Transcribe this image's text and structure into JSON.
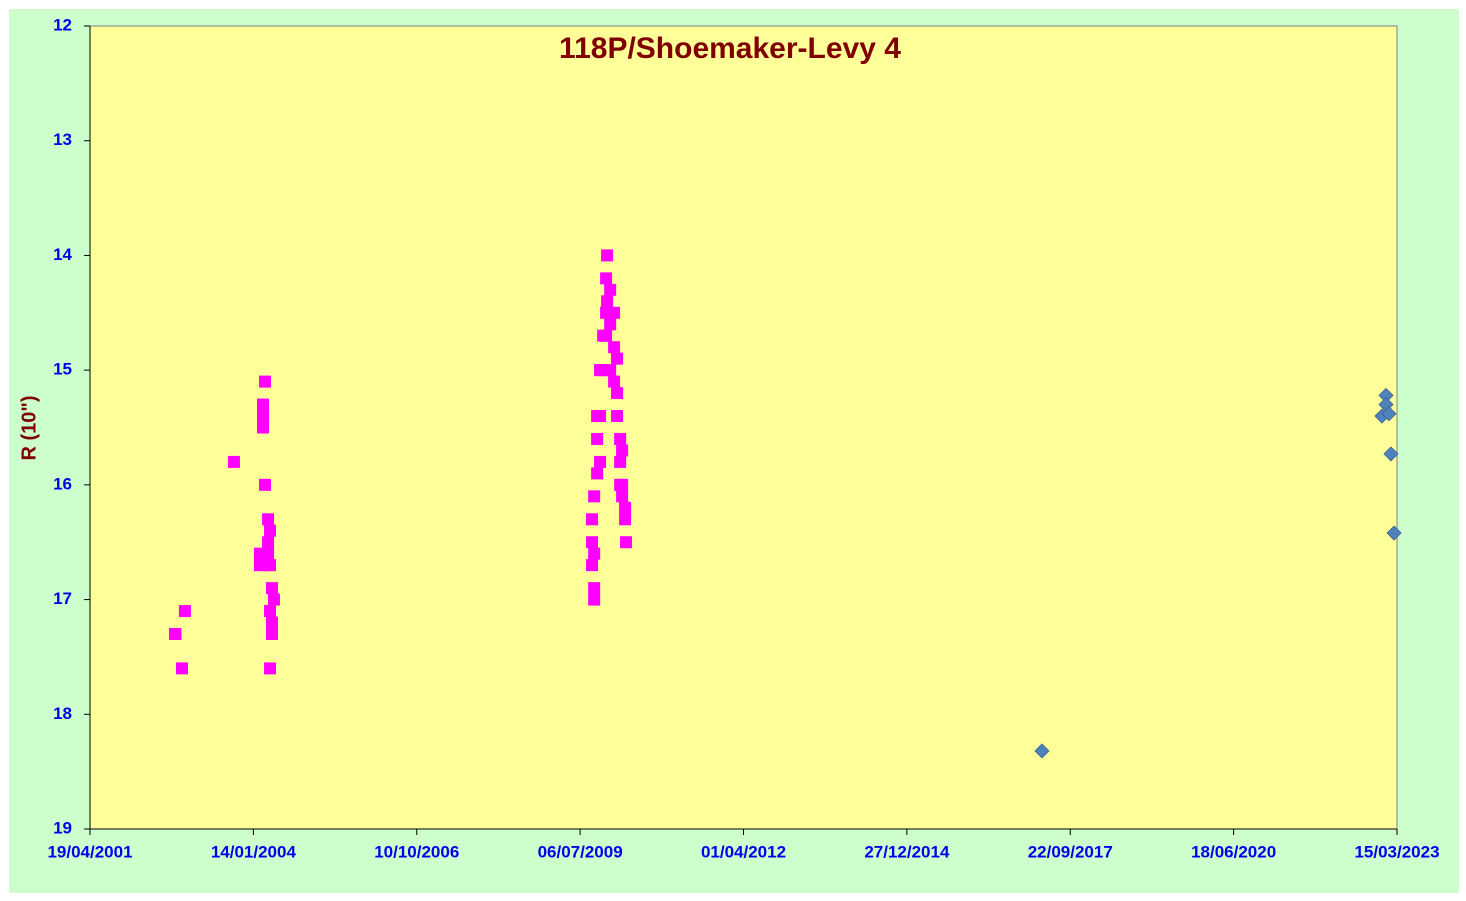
{
  "chart_data": {
    "type": "scatter",
    "title": "118P/Shoemaker-Levy 4",
    "y_label": "R (10\")",
    "xlim": [
      "19/04/2001",
      "15/03/2023"
    ],
    "xticks": [
      "19/04/2001",
      "14/01/2004",
      "10/10/2006",
      "06/07/2009",
      "01/04/2012",
      "27/12/2014",
      "22/09/2017",
      "18/06/2020",
      "15/03/2023"
    ],
    "ylim": [
      12,
      19
    ],
    "y_reversed": true,
    "yticks": [
      12,
      13,
      14,
      15,
      16,
      17,
      18,
      19
    ],
    "series": [
      {
        "color": "#ff00ff",
        "marker": "square",
        "x": [
          "21/09/2002",
          "24/09/2002",
          "03/11/2002",
          "21/11/2002",
          "17/09/2003",
          "23/02/2004",
          "23/02/2004",
          "13/03/2004",
          "13/03/2004",
          "13/03/2004",
          "25/03/2004",
          "25/03/2004",
          "25/03/2004",
          "13/04/2004",
          "13/04/2004",
          "13/04/2004",
          "25/04/2004",
          "25/04/2004",
          "25/04/2004",
          "25/04/2004",
          "07/05/2004",
          "07/05/2004",
          "07/05/2004",
          "19/05/2004",
          "17/09/2009",
          "17/09/2009",
          "17/09/2009",
          "30/09/2009",
          "30/09/2009",
          "30/09/2009",
          "30/09/2009",
          "18/10/2009",
          "18/10/2009",
          "18/10/2009",
          "05/11/2009",
          "05/11/2009",
          "05/11/2009",
          "24/11/2009",
          "24/11/2009",
          "12/12/2009",
          "12/12/2009",
          "12/12/2009",
          "18/12/2009",
          "18/12/2009",
          "06/01/2010",
          "06/01/2010",
          "06/01/2010",
          "30/01/2010",
          "30/01/2010",
          "30/01/2010",
          "17/02/2010",
          "17/02/2010",
          "17/02/2010",
          "08/03/2010",
          "08/03/2010",
          "08/03/2010",
          "20/03/2010",
          "20/03/2010",
          "20/03/2010",
          "07/04/2010",
          "07/04/2010",
          "13/04/2010"
        ],
        "values": [
          17.3,
          17.3,
          17.6,
          17.1,
          15.8,
          16.6,
          16.7,
          15.5,
          15.3,
          15.4,
          15.1,
          16.0,
          16.7,
          16.3,
          16.5,
          16.6,
          16.4,
          16.7,
          17.1,
          17.6,
          16.9,
          17.2,
          17.3,
          17.0,
          16.3,
          16.5,
          16.7,
          16.1,
          16.6,
          16.9,
          17.0,
          15.4,
          15.6,
          15.9,
          15.0,
          15.4,
          15.8,
          14.7,
          15.0,
          14.2,
          14.5,
          14.7,
          14.0,
          14.4,
          14.3,
          14.6,
          15.0,
          14.5,
          14.8,
          15.1,
          14.9,
          15.2,
          15.4,
          15.6,
          15.8,
          16.0,
          15.7,
          16.0,
          16.1,
          16.2,
          16.3,
          16.5
        ]
      },
      {
        "color": "#4f81bd",
        "marker": "diamond",
        "x": [
          "02/04/2017",
          "07/01/2023",
          "07/01/2023",
          "13/12/2022",
          "25/01/2023",
          "06/02/2023",
          "25/02/2023"
        ],
        "values": [
          18.32,
          15.22,
          15.3,
          15.4,
          15.38,
          15.73,
          16.42
        ]
      }
    ]
  }
}
